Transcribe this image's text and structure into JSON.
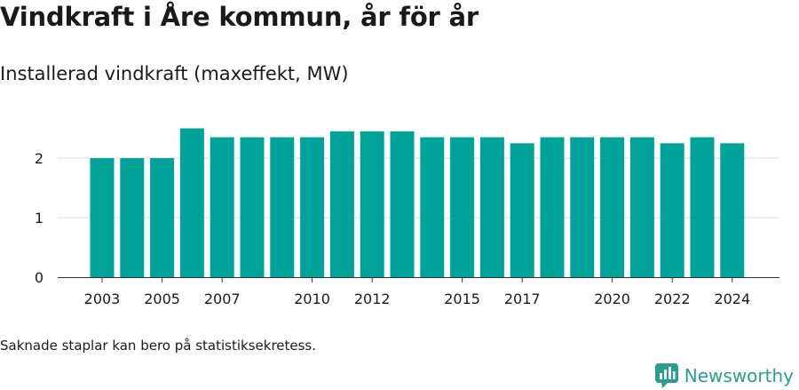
{
  "header": {
    "title": "Vindkraft i Åre kommun, år för år",
    "subtitle": "Installerad vindkraft (maxeffekt, MW)"
  },
  "footer": {
    "note": "Saknade staplar kan bero på statistiksekretess.",
    "brand": "Newsworthy"
  },
  "colors": {
    "bar": "#00a39a",
    "grid": "#dcdcdc",
    "axis": "#333333",
    "brand": "#2a9d93"
  },
  "chart_data": {
    "type": "bar",
    "categories": [
      "2003",
      "2004",
      "2005",
      "2006",
      "2007",
      "2008",
      "2009",
      "2010",
      "2011",
      "2012",
      "2013",
      "2014",
      "2015",
      "2016",
      "2017",
      "2018",
      "2019",
      "2020",
      "2021",
      "2022",
      "2023",
      "2024"
    ],
    "x_tick_labels": [
      "2003",
      "2005",
      "2007",
      "2010",
      "2012",
      "2015",
      "2017",
      "2020",
      "2022",
      "2024"
    ],
    "values": [
      2.0,
      2.0,
      2.0,
      2.5,
      2.35,
      2.35,
      2.35,
      2.35,
      2.45,
      2.45,
      2.45,
      2.35,
      2.35,
      2.35,
      2.25,
      2.35,
      2.35,
      2.35,
      2.35,
      2.25,
      2.35,
      2.25
    ],
    "y_ticks": [
      0,
      1,
      2
    ],
    "ylim": [
      0,
      2.5
    ],
    "grid": true,
    "legend": "none"
  }
}
